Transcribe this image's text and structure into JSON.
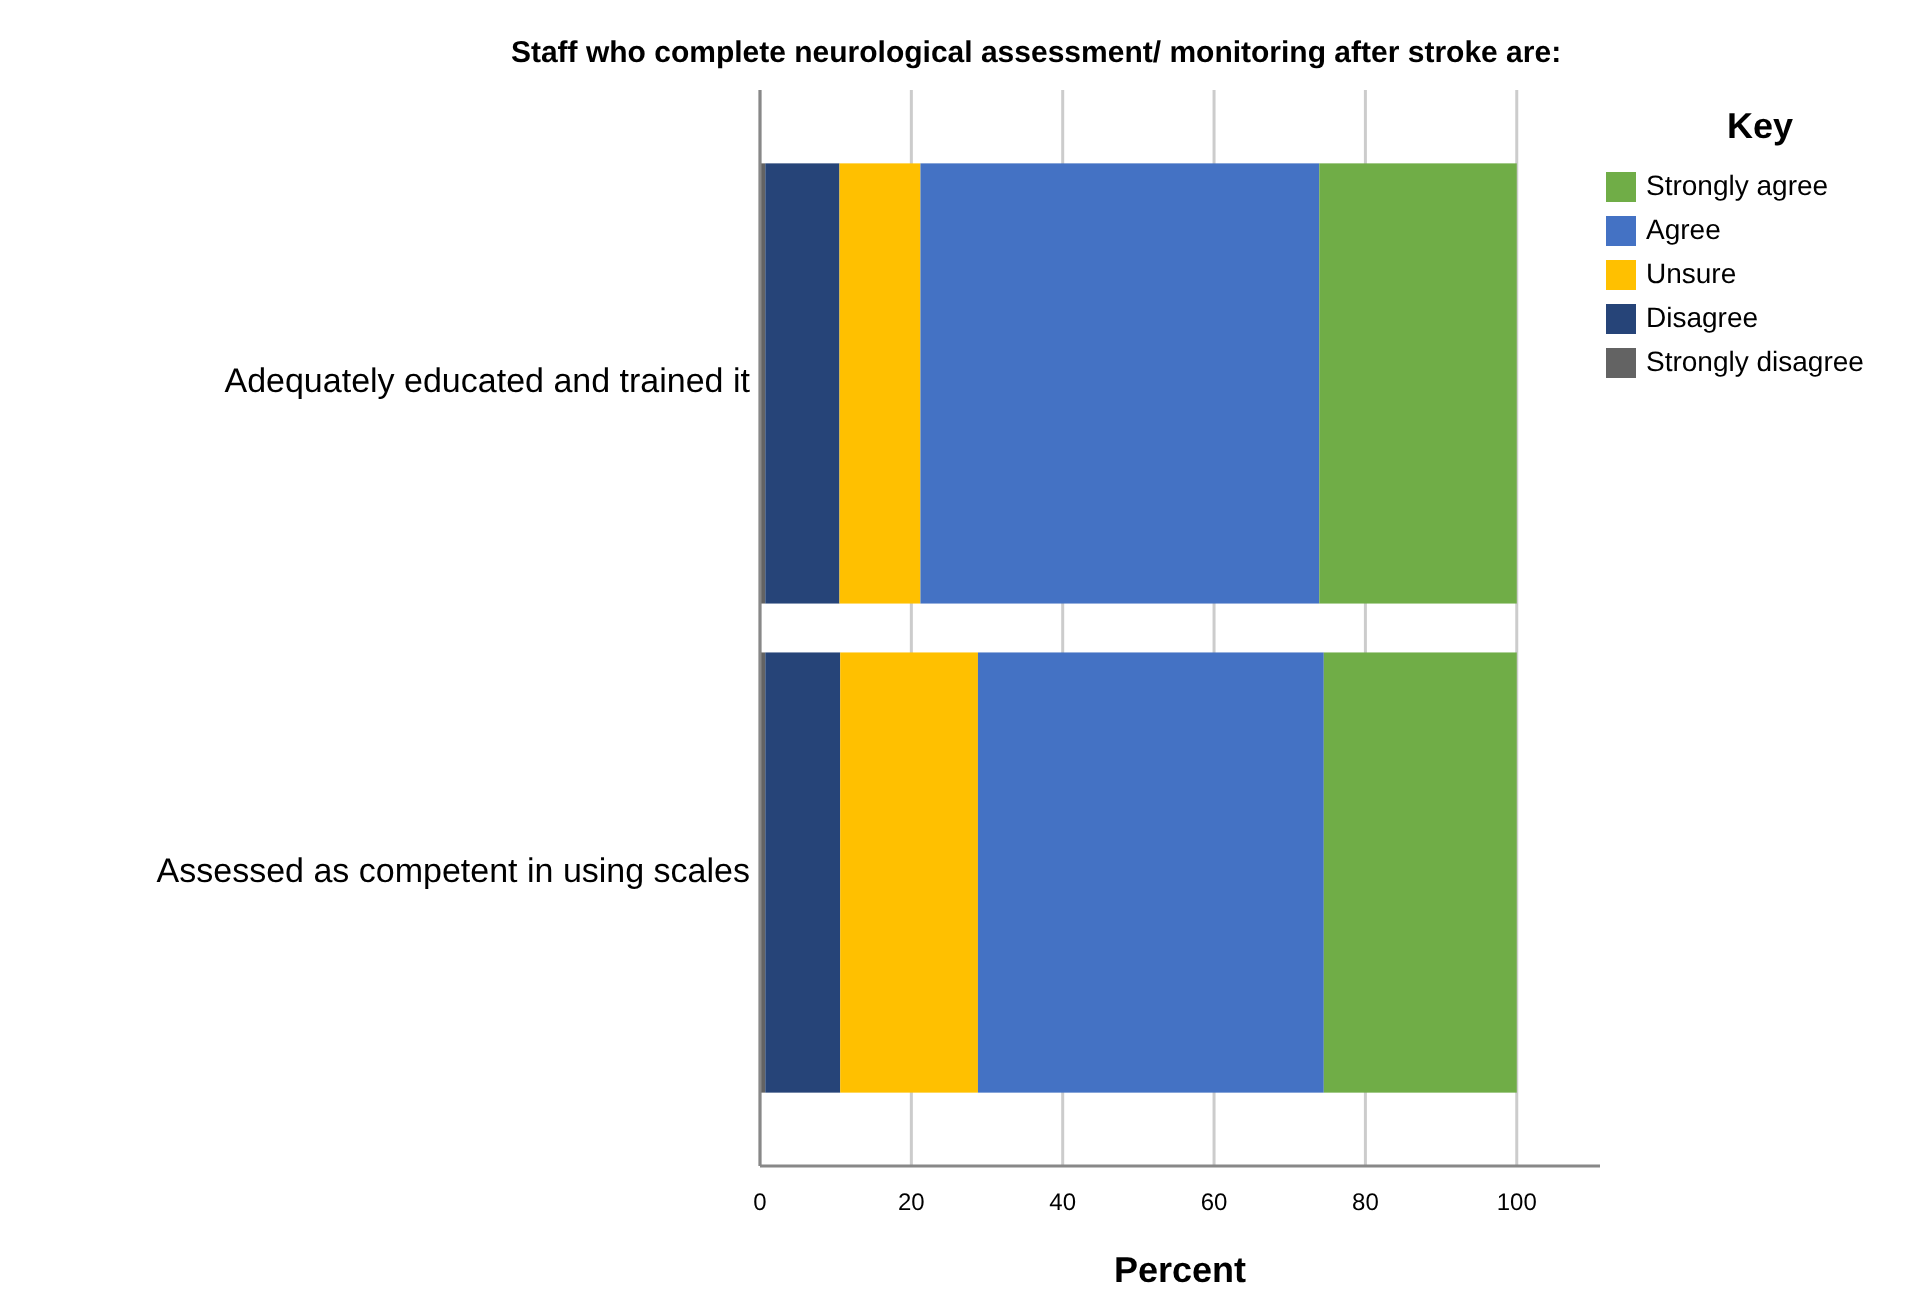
{
  "chart_data": {
    "type": "bar",
    "orientation": "horizontal",
    "stacked": true,
    "title": "Staff who complete neurological assessment/ monitoring after stroke are:",
    "xlabel": "Percent",
    "legend_title": "Key",
    "categories": [
      "Adequately educated and trained it",
      "Assessed as competent in using scales"
    ],
    "series": [
      {
        "name": "Strongly disagree",
        "color": "#636363",
        "values": [
          0.7,
          0.7
        ]
      },
      {
        "name": "Disagree",
        "color": "#264478",
        "values": [
          9.8,
          9.9
        ]
      },
      {
        "name": "Unsure",
        "color": "#ffc000",
        "values": [
          10.7,
          18.2
        ]
      },
      {
        "name": "Agree",
        "color": "#4472c4",
        "values": [
          52.7,
          45.7
        ]
      },
      {
        "name": "Strongly agree",
        "color": "#70ad47",
        "values": [
          26.1,
          25.5
        ]
      }
    ],
    "xlim": [
      0,
      111
    ],
    "xticks": [
      0,
      20,
      40,
      60,
      80,
      100
    ],
    "grid": "x",
    "legend": "top right"
  }
}
